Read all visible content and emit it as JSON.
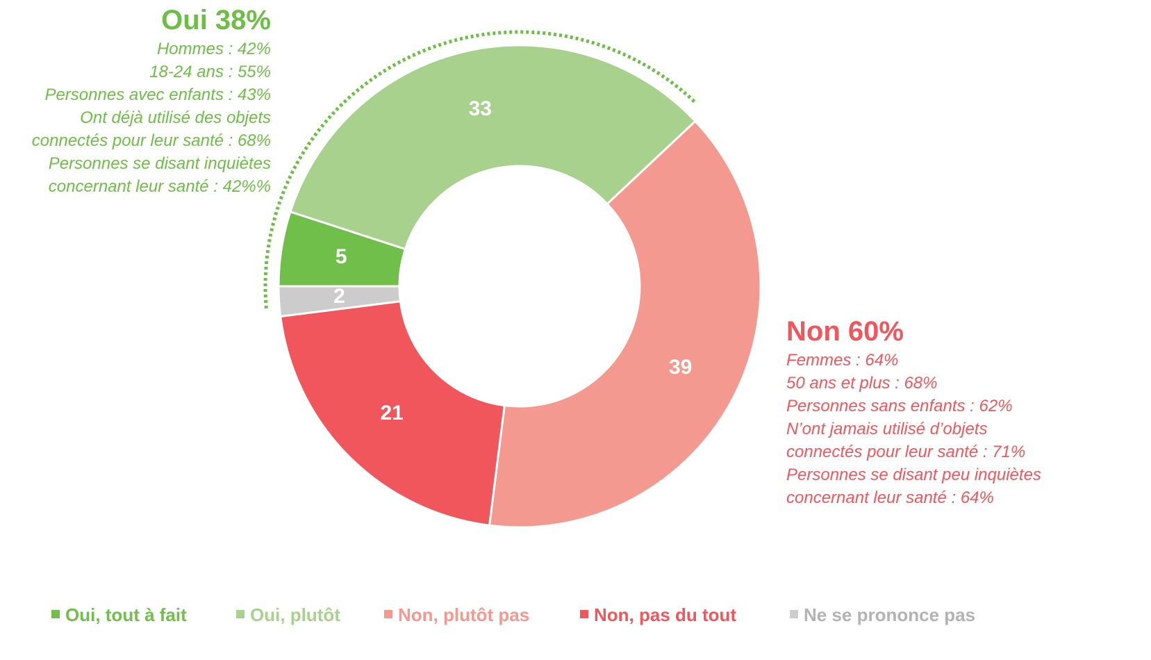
{
  "chart_data": {
    "type": "donut",
    "categories": [
      "Oui, tout à fait",
      "Oui, plutôt",
      "Non, plutôt pas",
      "Non, pas du tout",
      "Ne se prononce pas"
    ],
    "values": [
      5,
      33,
      39,
      21,
      2
    ],
    "colors": [
      "#70bf4a",
      "#a9d18e",
      "#f4998f",
      "#f0565b",
      "#cccccc"
    ],
    "annotations": [
      {
        "title": "Oui 38%",
        "color": "#6dbe45",
        "lines": [
          "Hommes : 42%",
          "18-24 ans : 55%",
          "Personnes avec enfants : 43%",
          "Ont déjà utilisé des objets",
          "connectés pour leur santé : 68%",
          "Personnes se disant inquiètes",
          "concernant leur santé : 42%%"
        ]
      },
      {
        "title": "Non 60%",
        "color": "#f0565b",
        "lines": [
          "Femmes : 64%",
          "50 ans et plus : 68%",
          "Personnes sans enfants : 62%",
          "N’ont jamais utilisé d’objets",
          "connectés pour leur santé : 71%",
          "Personnes se disant peu inquiètes",
          "concernant leur santé : 64%"
        ]
      }
    ]
  }
}
